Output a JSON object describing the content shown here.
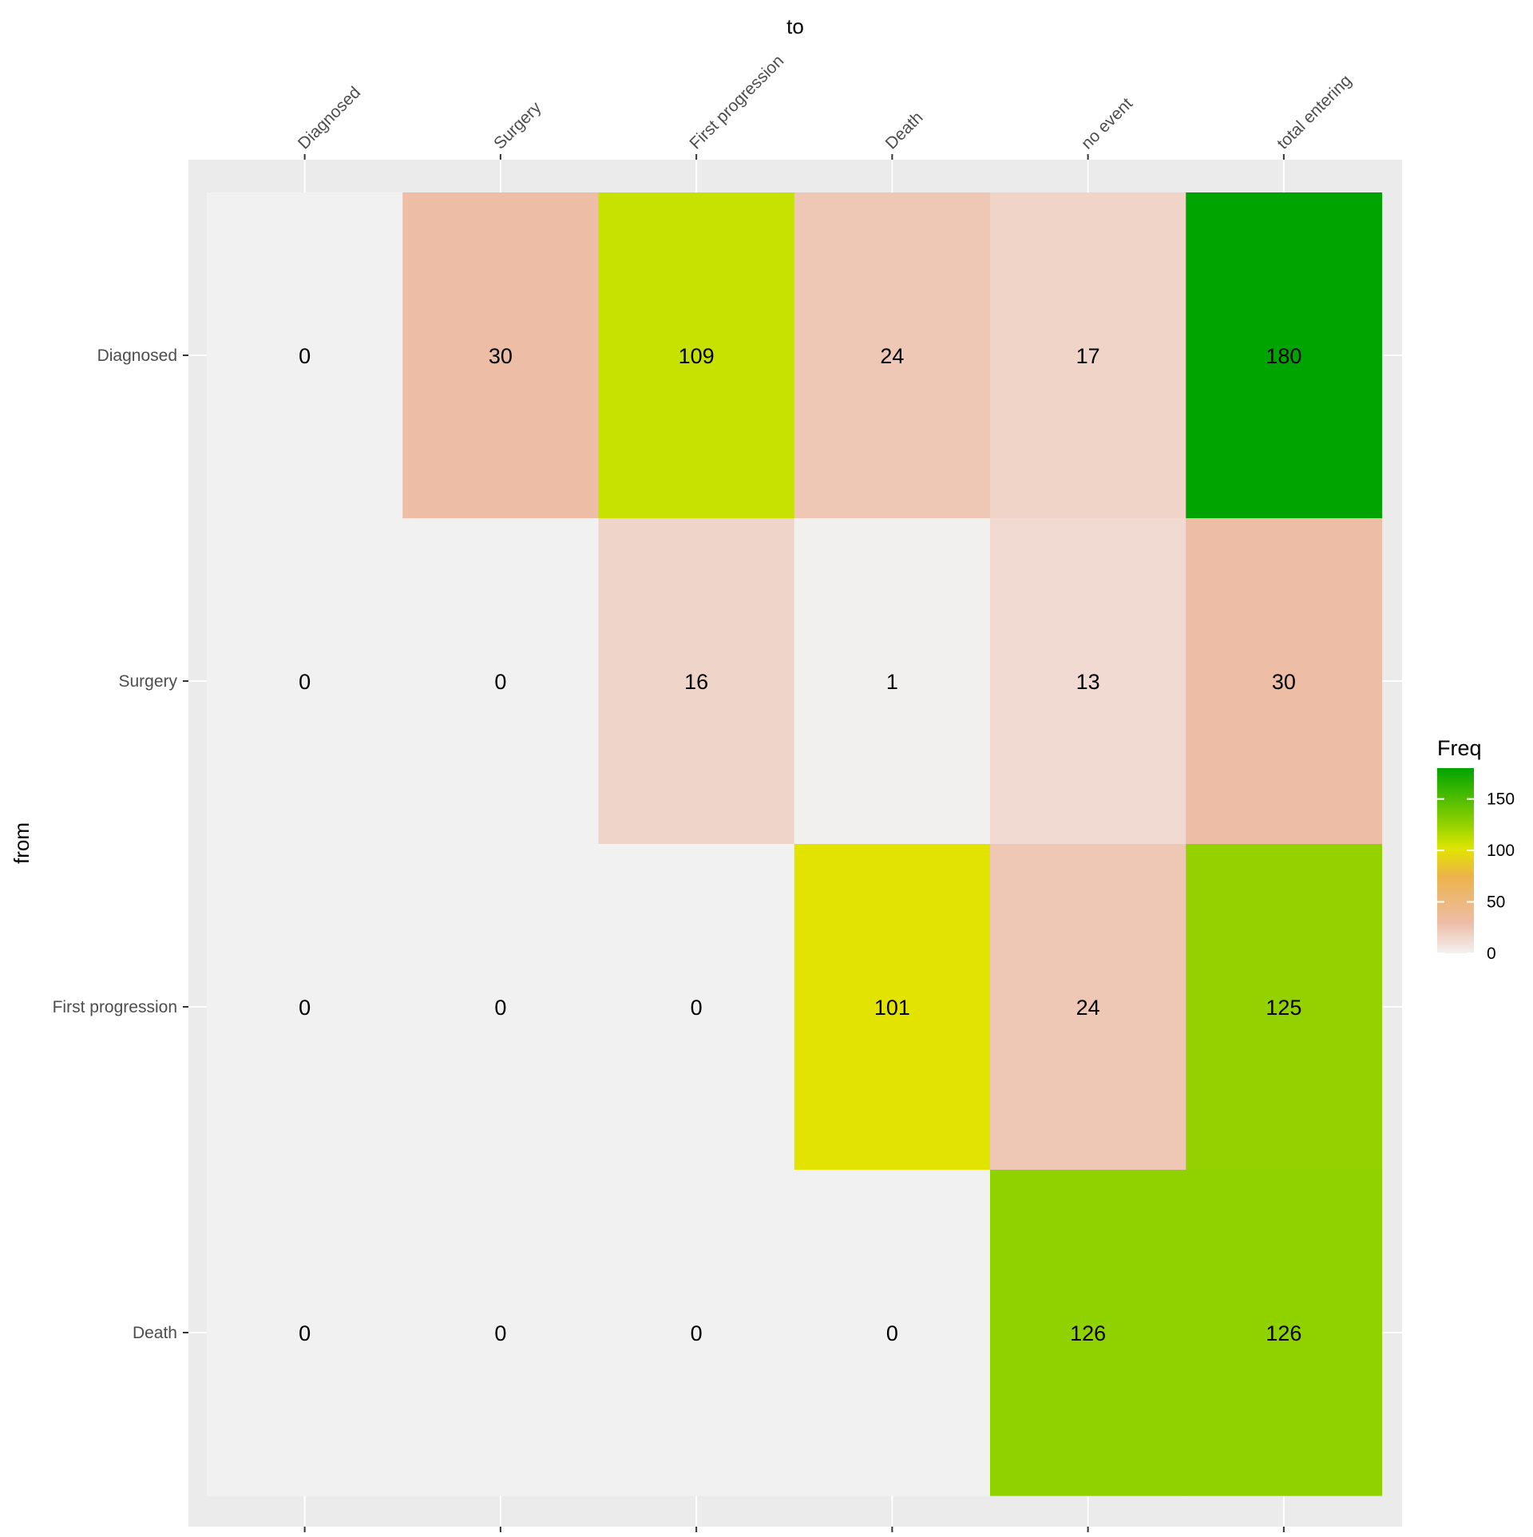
{
  "chart_data": {
    "type": "heatmap",
    "xlabel": "to",
    "ylabel": "from",
    "x_categories": [
      "Diagnosed",
      "Surgery",
      "First progression",
      "Death",
      "no event",
      "total entering"
    ],
    "y_categories": [
      "Diagnosed",
      "Surgery",
      "First progression",
      "Death"
    ],
    "values": [
      [
        0,
        30,
        109,
        24,
        17,
        180
      ],
      [
        0,
        0,
        16,
        1,
        13,
        30
      ],
      [
        0,
        0,
        0,
        101,
        24,
        125
      ],
      [
        0,
        0,
        0,
        0,
        126,
        126
      ]
    ],
    "x_axis_position": "top",
    "x_tick_label_angle": -45,
    "grid": true,
    "legend": {
      "title": "Freq",
      "position": "right",
      "ticks": [
        0,
        50,
        100,
        150
      ],
      "range": [
        0,
        180
      ],
      "colors": [
        {
          "value": 0,
          "color": "#f2f1f1"
        },
        {
          "value": 30,
          "color": "#edbda6"
        },
        {
          "value": 75,
          "color": "#ecb34a"
        },
        {
          "value": 101,
          "color": "#e2e400"
        },
        {
          "value": 109,
          "color": "#c7e100"
        },
        {
          "value": 125,
          "color": "#93d200"
        },
        {
          "value": 180,
          "color": "#00a400"
        }
      ]
    },
    "panel_background": "#ebebeb",
    "gridline_color": "#ffffff"
  }
}
